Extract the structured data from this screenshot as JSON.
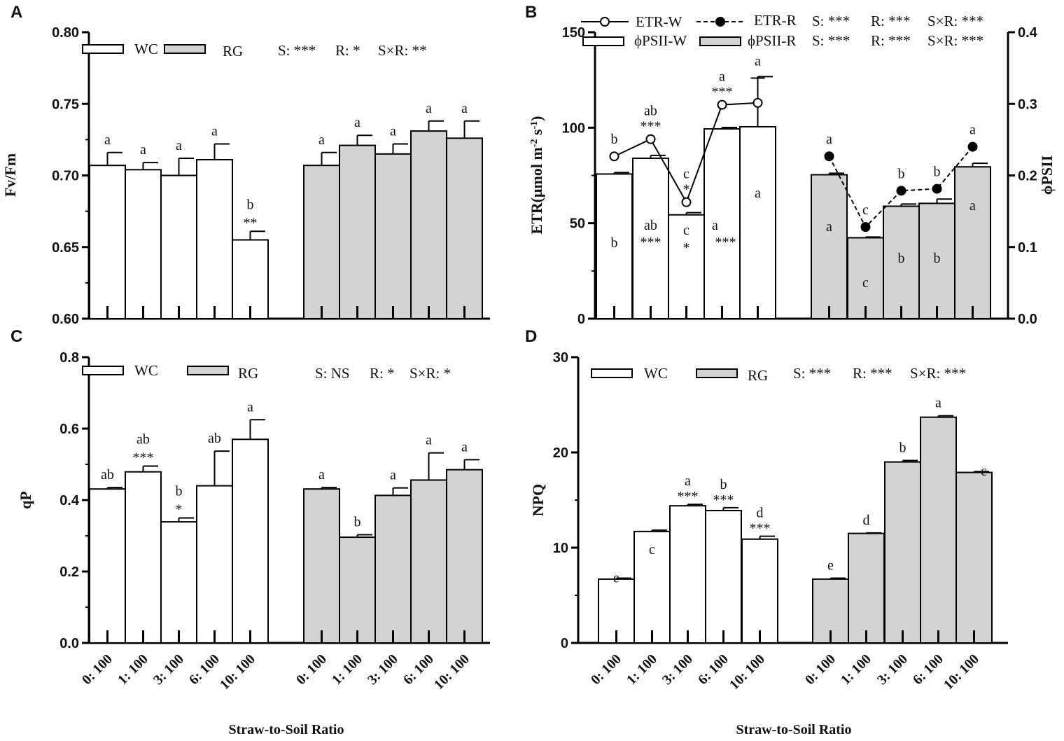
{
  "figure": {
    "xlabel": "Straw-to-Soil Ratio",
    "treatments": [
      "0: 100",
      "1: 100",
      "3: 100",
      "6: 100",
      "10: 100"
    ]
  },
  "colors": {
    "wc_fill": "#ffffff",
    "rg_fill": "#d3d3d3",
    "stroke": "#000000"
  },
  "chart_data": [
    {
      "panel": "A",
      "type": "bar",
      "ylabel": "Fv/Fm",
      "ylim": [
        0.6,
        0.8
      ],
      "yticks": [
        "0.60",
        "0.65",
        "0.70",
        "0.75",
        "0.80"
      ],
      "categories": [
        "0: 100",
        "1: 100",
        "3: 100",
        "6: 100",
        "10: 100"
      ],
      "legend": [
        "WC",
        "RG"
      ],
      "stats": [
        "S: ***",
        "R: *",
        "S×R: **"
      ],
      "series": [
        {
          "name": "WC",
          "values": [
            0.707,
            0.704,
            0.7,
            0.711,
            0.655
          ],
          "errors": [
            0.009,
            0.005,
            0.012,
            0.011,
            0.006
          ],
          "letters": [
            "a",
            "a",
            "a",
            "a",
            "b"
          ],
          "stars": [
            "",
            "",
            "",
            "",
            "**"
          ]
        },
        {
          "name": "RG",
          "values": [
            0.707,
            0.721,
            0.715,
            0.731,
            0.726
          ],
          "errors": [
            0.009,
            0.007,
            0.007,
            0.007,
            0.012
          ],
          "letters": [
            "a",
            "a",
            "a",
            "a",
            "a"
          ],
          "stars": [
            "",
            "",
            "",
            "",
            ""
          ]
        }
      ]
    },
    {
      "panel": "B",
      "type": "bar+line",
      "ylabel": "ETR(μmol m-2 s-1)",
      "ylabel_parts": [
        "ETR(μmol m",
        "-2",
        " s",
        "-1",
        ")"
      ],
      "y2label": "ϕPSII",
      "ylim": [
        0,
        150
      ],
      "yticks": [
        "0",
        "50",
        "100",
        "150"
      ],
      "y2lim": [
        0,
        0.4
      ],
      "y2ticks": [
        "0.0",
        "0.1",
        "0.2",
        "0.3",
        "0.4"
      ],
      "categories": [
        "0: 100",
        "1: 100",
        "3: 100",
        "6: 100",
        "10: 100"
      ],
      "legend": [
        "ETR-W",
        "ETR-R",
        "ϕPSII-W",
        "ϕPSII-R"
      ],
      "stats": [
        [
          "S: ***",
          "R: ***",
          "S×R: ***"
        ],
        [
          "S: ***",
          "R: ***",
          "S×R: ***"
        ]
      ],
      "series": [
        {
          "name": "ϕPSII-W",
          "axis": "right",
          "values": [
            0.202,
            0.224,
            0.145,
            0.265,
            0.268
          ],
          "errors": [
            0.002,
            0.004,
            0.003,
            0.002,
            0.07
          ],
          "letters": [
            "b",
            "ab",
            "c",
            "a",
            "a"
          ],
          "stars": [
            "",
            "***",
            "*",
            "***",
            ""
          ]
        },
        {
          "name": "ϕPSII-R",
          "axis": "right",
          "values": [
            0.201,
            0.113,
            0.157,
            0.161,
            0.212
          ],
          "errors": [
            0.002,
            0.001,
            0.003,
            0.006,
            0.005
          ],
          "letters": [
            "a",
            "c",
            "b",
            "b",
            "a"
          ],
          "stars": [
            "",
            "",
            "",
            "",
            ""
          ]
        },
        {
          "name": "ETR-W",
          "axis": "left",
          "values": [
            85,
            94,
            61,
            112,
            113
          ],
          "errors": [
            0,
            0,
            0,
            0,
            13
          ],
          "letters": [
            "b",
            "ab",
            "c",
            "a",
            "a"
          ],
          "stars": [
            "",
            "***",
            "*",
            "***",
            ""
          ]
        },
        {
          "name": "ETR-R",
          "axis": "left",
          "values": [
            85,
            48,
            67,
            68,
            90
          ],
          "errors": [
            0,
            0,
            0,
            0,
            0
          ],
          "letters": [
            "a",
            "c",
            "b",
            "b",
            "a"
          ],
          "stars": [
            "",
            "",
            "",
            "",
            ""
          ]
        }
      ]
    },
    {
      "panel": "C",
      "type": "bar",
      "ylabel": "qP",
      "ylim": [
        0,
        0.8
      ],
      "yticks": [
        "0.0",
        "0.2",
        "0.4",
        "0.6",
        "0.8"
      ],
      "categories": [
        "0: 100",
        "1: 100",
        "3: 100",
        "6: 100",
        "10: 100"
      ],
      "legend": [
        "WC",
        "RG"
      ],
      "stats": [
        "S: NS",
        "R: *",
        "S×R: *"
      ],
      "series": [
        {
          "name": "WC",
          "values": [
            0.431,
            0.479,
            0.339,
            0.44,
            0.57
          ],
          "errors": [
            0.004,
            0.016,
            0.011,
            0.097,
            0.055
          ],
          "letters": [
            "ab",
            "ab",
            "b",
            "ab",
            "a"
          ],
          "stars": [
            "",
            "***",
            "*",
            "",
            ""
          ]
        },
        {
          "name": "RG",
          "values": [
            0.431,
            0.296,
            0.413,
            0.456,
            0.485
          ],
          "errors": [
            0.004,
            0.007,
            0.021,
            0.076,
            0.028
          ],
          "letters": [
            "a",
            "b",
            "a",
            "a",
            "a"
          ],
          "stars": [
            "",
            "",
            "",
            "",
            ""
          ]
        }
      ]
    },
    {
      "panel": "D",
      "type": "bar",
      "ylabel": "NPQ",
      "ylim": [
        0,
        30
      ],
      "yticks": [
        "0",
        "10",
        "20",
        "30"
      ],
      "categories": [
        "0: 100",
        "1: 100",
        "3: 100",
        "6: 100",
        "10: 100"
      ],
      "legend": [
        "WC",
        "RG"
      ],
      "stats": [
        "S: ***",
        "R: ***",
        "S×R: ***"
      ],
      "series": [
        {
          "name": "WC",
          "values": [
            6.7,
            11.7,
            14.4,
            13.9,
            10.9
          ],
          "errors": [
            0.1,
            0.15,
            0.15,
            0.3,
            0.3
          ],
          "letters": [
            "e",
            "c",
            "a",
            "b",
            "d"
          ],
          "stars": [
            "",
            "",
            "***",
            "***",
            "***"
          ]
        },
        {
          "name": "RG",
          "values": [
            6.7,
            11.5,
            19.0,
            23.7,
            17.9
          ],
          "errors": [
            0.1,
            0.05,
            0.15,
            0.15,
            0.1
          ],
          "letters": [
            "e",
            "d",
            "b",
            "a",
            "c"
          ],
          "stars": [
            "",
            "",
            "",
            "",
            ""
          ]
        }
      ]
    }
  ]
}
